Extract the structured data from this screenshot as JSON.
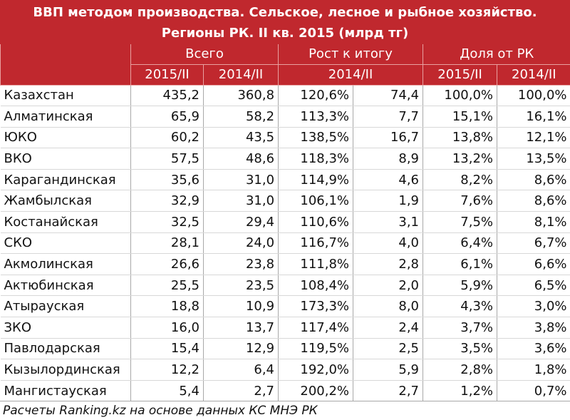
{
  "title": [
    "ВВП методом производства. Сельское, лесное и рыбное хозяйство.",
    "Регионы РК. II кв. 2015 (млрд тг)"
  ],
  "header": {
    "groups": [
      "Всего",
      "Рост к итогу",
      "Доля от РК"
    ],
    "periods": [
      "2015/II",
      "2014/II",
      "2014/II",
      "2015/II",
      "2014/II"
    ]
  },
  "rows": [
    [
      "Казахстан",
      "435,2",
      "360,8",
      "120,6%",
      "74,4",
      "100,0%",
      "100,0%"
    ],
    [
      "Алматинская",
      "65,9",
      "58,2",
      "113,3%",
      "7,7",
      "15,1%",
      "16,1%"
    ],
    [
      "ЮКО",
      "60,2",
      "43,5",
      "138,5%",
      "16,7",
      "13,8%",
      "12,1%"
    ],
    [
      "ВКО",
      "57,5",
      "48,6",
      "118,3%",
      "8,9",
      "13,2%",
      "13,5%"
    ],
    [
      "Карагандинская",
      "35,6",
      "31,0",
      "114,9%",
      "4,6",
      "8,2%",
      "8,6%"
    ],
    [
      "Жамбылская",
      "32,9",
      "31,0",
      "106,1%",
      "1,9",
      "7,6%",
      "8,6%"
    ],
    [
      "Костанайская",
      "32,5",
      "29,4",
      "110,6%",
      "3,1",
      "7,5%",
      "8,1%"
    ],
    [
      "СКО",
      "28,1",
      "24,0",
      "116,7%",
      "4,0",
      "6,4%",
      "6,7%"
    ],
    [
      "Акмолинская",
      "26,6",
      "23,8",
      "111,8%",
      "2,8",
      "6,1%",
      "6,6%"
    ],
    [
      "Актюбинская",
      "25,5",
      "23,5",
      "108,4%",
      "2,0",
      "5,9%",
      "6,5%"
    ],
    [
      "Атырауская",
      "18,8",
      "10,9",
      "173,3%",
      "8,0",
      "4,3%",
      "3,0%"
    ],
    [
      "ЗКО",
      "16,0",
      "13,7",
      "117,4%",
      "2,4",
      "3,7%",
      "3,8%"
    ],
    [
      "Павлодарская",
      "15,4",
      "12,9",
      "119,5%",
      "2,5",
      "3,5%",
      "3,6%"
    ],
    [
      "Кызылординская",
      "12,2",
      "6,4",
      "192,0%",
      "5,9",
      "2,8%",
      "1,8%"
    ],
    [
      "Мангистауская",
      "5,4",
      "2,7",
      "200,2%",
      "2,7",
      "1,2%",
      "0,7%"
    ]
  ],
  "footer": "Расчеты Ranking.kz на основе данных КС МНЭ РК"
}
